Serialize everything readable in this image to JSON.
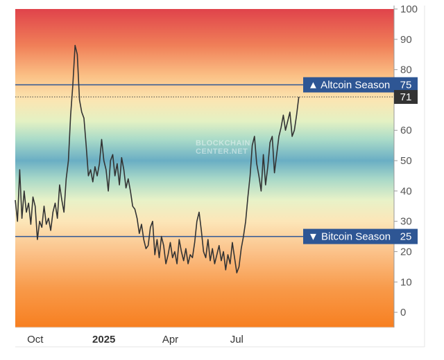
{
  "chart_data": {
    "type": "line",
    "title": "",
    "watermark": [
      "BLOCKCHAIN",
      "CENTER.NET"
    ],
    "y_axis": {
      "min": -5,
      "max": 100,
      "ticks": [
        0,
        10,
        20,
        30,
        40,
        50,
        60,
        70,
        80,
        90,
        100
      ],
      "position": "right"
    },
    "x_axis": {
      "ticks": [
        {
          "label": "Oct",
          "x": 0.9,
          "bold": false
        },
        {
          "label": "2025",
          "x": 4.0,
          "bold": true
        },
        {
          "label": "Apr",
          "x": 7.0,
          "bold": false
        },
        {
          "label": "Jul",
          "x": 10.0,
          "bold": false
        }
      ],
      "range": [
        0.0,
        17.1
      ]
    },
    "series": [
      {
        "color": "#333333",
        "x": [
          0.0,
          0.1,
          0.2,
          0.3,
          0.4,
          0.5,
          0.6,
          0.7,
          0.8,
          0.9,
          1.0,
          1.1,
          1.2,
          1.3,
          1.4,
          1.5,
          1.6,
          1.7,
          1.8,
          1.9,
          2.0,
          2.1,
          2.2,
          2.3,
          2.4,
          2.5,
          2.6,
          2.7,
          2.8,
          2.9,
          3.0,
          3.1,
          3.2,
          3.3,
          3.4,
          3.5,
          3.6,
          3.7,
          3.8,
          3.9,
          4.0,
          4.1,
          4.2,
          4.3,
          4.4,
          4.5,
          4.6,
          4.7,
          4.8,
          4.9,
          5.0,
          5.1,
          5.2,
          5.3,
          5.4,
          5.5,
          5.6,
          5.7,
          5.8,
          5.9,
          6.0,
          6.1,
          6.2,
          6.3,
          6.4,
          6.5,
          6.6,
          6.7,
          6.8,
          6.9,
          7.0,
          7.1,
          7.2,
          7.3,
          7.4,
          7.5,
          7.6,
          7.7,
          7.8,
          7.9,
          8.0,
          8.1,
          8.2,
          8.3,
          8.4,
          8.5,
          8.6,
          8.7,
          8.8,
          8.9,
          9.0,
          9.1,
          9.2,
          9.3,
          9.4,
          9.5,
          9.6,
          9.7,
          9.8,
          9.9,
          10.0,
          10.1,
          10.2,
          10.3,
          10.4,
          10.5,
          10.6,
          10.7,
          10.8,
          10.9,
          11.0,
          11.1,
          11.2,
          11.3,
          11.4,
          11.5,
          11.6,
          11.7,
          11.8,
          11.9,
          12.0,
          12.1,
          12.2,
          12.3,
          12.4,
          12.5,
          12.6,
          12.7,
          12.8
        ],
        "y": [
          37,
          30,
          47,
          31,
          40,
          33,
          36,
          29,
          38,
          35,
          24,
          30,
          28,
          35,
          29,
          31,
          27,
          33,
          36,
          31,
          42,
          37,
          33,
          44,
          50,
          65,
          75,
          88,
          85,
          70,
          66,
          64,
          55,
          45,
          47,
          43,
          48,
          45,
          49,
          57,
          50,
          47,
          40,
          50,
          52,
          45,
          49,
          42,
          51,
          47,
          41,
          44,
          40,
          35,
          34,
          31,
          26,
          29,
          24,
          21,
          22,
          28,
          30,
          19,
          24,
          18,
          25,
          22,
          16,
          19,
          23,
          18,
          20,
          16,
          24,
          20,
          17,
          21,
          16,
          19,
          18,
          23,
          30,
          33,
          27,
          20,
          18,
          24,
          17,
          21,
          16,
          19,
          22,
          17,
          20,
          14,
          19,
          16,
          23,
          18,
          13,
          15,
          21,
          25,
          30,
          38,
          45,
          55,
          58,
          49,
          45,
          40,
          52,
          42,
          48,
          56,
          58,
          46,
          52,
          58,
          61,
          65,
          60,
          63,
          66,
          58,
          60,
          65,
          71
        ]
      }
    ],
    "bands": [
      {
        "value": 75,
        "label": "Altcoin Season",
        "arrow": "▲"
      },
      {
        "value": 25,
        "label": "Bitcoin Season",
        "arrow": "▼"
      }
    ],
    "current_value": {
      "value": 71,
      "label": "71"
    },
    "gradient": [
      {
        "v": 100,
        "color": "#e0434b"
      },
      {
        "v": 88,
        "color": "#f07f58"
      },
      {
        "v": 78,
        "color": "#fbc085"
      },
      {
        "v": 70,
        "color": "#fbe5b2"
      },
      {
        "v": 63,
        "color": "#e4f1c3"
      },
      {
        "v": 57,
        "color": "#aadbc8"
      },
      {
        "v": 50,
        "color": "#6aaec4"
      },
      {
        "v": 44,
        "color": "#a8d8c8"
      },
      {
        "v": 37,
        "color": "#e8f2c8"
      },
      {
        "v": 30,
        "color": "#fce6b8"
      },
      {
        "v": 20,
        "color": "#fbc28a"
      },
      {
        "v": 8,
        "color": "#f89a4a"
      },
      {
        "v": -5,
        "color": "#f77f20"
      }
    ],
    "band_color": "#2e5694",
    "current_badge_color": "#333333"
  }
}
